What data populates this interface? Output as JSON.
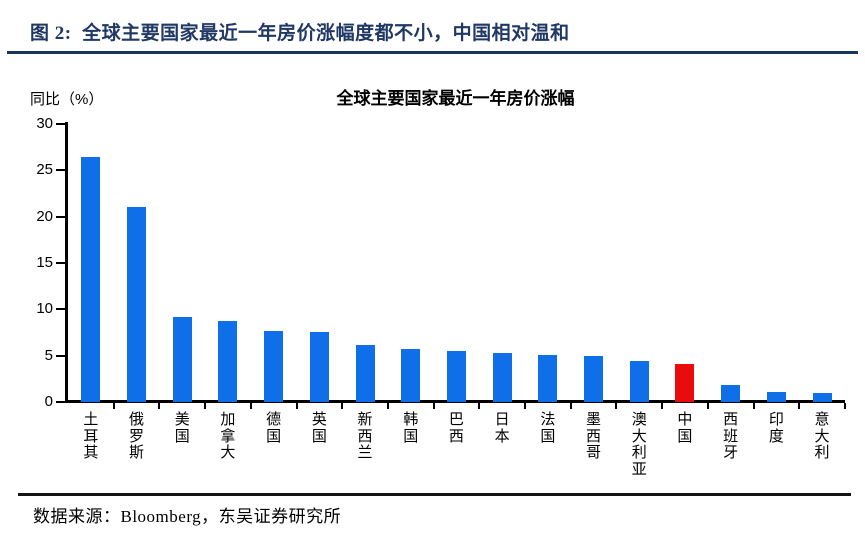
{
  "header": {
    "title": "图 2:  全球主要国家最近一年房价涨幅度都不小，中国相对温和"
  },
  "footer": {
    "source": "数据来源：Bloomberg，东吴证券研究所"
  },
  "chart_data": {
    "type": "bar",
    "title": "全球主要国家最近一年房价涨幅",
    "ylabel": "同比（%）",
    "xlabel": "",
    "categories": [
      "土耳其",
      "俄罗斯",
      "美国",
      "加拿大",
      "德国",
      "英国",
      "新西兰",
      "韩国",
      "巴西",
      "日本",
      "法国",
      "墨西哥",
      "澳大利亚",
      "中国",
      "西班牙",
      "印度",
      "意大利"
    ],
    "values": [
      26.4,
      21.0,
      9.2,
      8.7,
      7.7,
      7.5,
      6.2,
      5.7,
      5.5,
      5.3,
      5.1,
      5.0,
      4.4,
      4.1,
      1.8,
      1.1,
      1.0
    ],
    "ylim": [
      0,
      30
    ],
    "yticks": [
      0,
      5,
      10,
      15,
      20,
      25,
      30
    ],
    "grid": false,
    "legend": "none",
    "bar_color": "#0E6FE8",
    "highlight_color": "#EA0C0C",
    "highlight_category": "中国",
    "accent_text_color": "#1F3864"
  }
}
